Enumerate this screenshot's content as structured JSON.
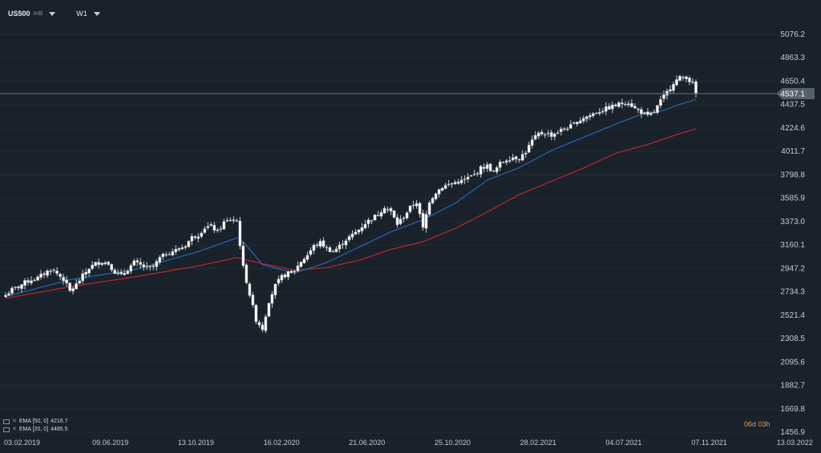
{
  "toolbar": {
    "symbol": "US500",
    "symbol_suffix": "IHB",
    "timeframe": "W1"
  },
  "indicators": [
    {
      "label": "EMA [50, 0]",
      "value": "4216.7",
      "color": "#b1262b"
    },
    {
      "label": "EMA [20, 0]",
      "value": "4485.5",
      "color": "#2563a8"
    }
  ],
  "timer": {
    "days": "06",
    "days_unit": "d",
    "hours": "03",
    "hours_unit": "h"
  },
  "current_price": {
    "value": 4537.1,
    "label": "4537.1",
    "color": "#6b737d"
  },
  "colors": {
    "background": "#19212a",
    "up": "#ffffff",
    "down": "#ffffff",
    "candle_border": "#9aa0a8",
    "grid": "#232c36"
  },
  "chart_data": {
    "type": "candlestick",
    "x_labels": [
      "03.02.2019",
      "09.06.2019",
      "13.10.2019",
      "16.02.2020",
      "21.06.2020",
      "25.10.2020",
      "28.02.2021",
      "04.07.2021",
      "07.11.2021",
      "13.03.2022"
    ],
    "y_ticks": [
      1456.9,
      1669.8,
      1882.7,
      2095.6,
      2308.5,
      2521.4,
      2734.3,
      2947.2,
      3160.1,
      3373.0,
      3585.9,
      3798.8,
      4011.7,
      4224.6,
      4437.5,
      4650.4,
      4863.3,
      5076.2
    ],
    "y_tick_labels": [
      "1456.9",
      "1669.8",
      "1882.7",
      "2095.6",
      "2308.5",
      "2521.4",
      "2734.3",
      "2947.2",
      "3160.1",
      "3373.0",
      "3585.9",
      "3798.8",
      "4011.7",
      "4224.6",
      "4437.5",
      "4650.4",
      "4863.3",
      "5076.2"
    ],
    "ylim": [
      1400,
      5250
    ],
    "close_anchors": [
      [
        0,
        2704
      ],
      [
        2,
        2753
      ],
      [
        4,
        2780
      ],
      [
        6,
        2820
      ],
      [
        8,
        2845
      ],
      [
        10,
        2860
      ],
      [
        12,
        2900
      ],
      [
        14,
        2940
      ],
      [
        16,
        2900
      ],
      [
        18,
        2850
      ],
      [
        20,
        2740
      ],
      [
        22,
        2800
      ],
      [
        24,
        2880
      ],
      [
        26,
        2950
      ],
      [
        28,
        2990
      ],
      [
        30,
        3010
      ],
      [
        32,
        2990
      ],
      [
        34,
        2915
      ],
      [
        36,
        2880
      ],
      [
        38,
        2940
      ],
      [
        40,
        3000
      ],
      [
        42,
        2975
      ],
      [
        44,
        2950
      ],
      [
        46,
        2960
      ],
      [
        48,
        3040
      ],
      [
        50,
        3080
      ],
      [
        52,
        3105
      ],
      [
        54,
        3120
      ],
      [
        56,
        3160
      ],
      [
        58,
        3230
      ],
      [
        60,
        3255
      ],
      [
        62,
        3320
      ],
      [
        64,
        3330
      ],
      [
        66,
        3280
      ],
      [
        68,
        3365
      ],
      [
        70,
        3390
      ],
      [
        72,
        3380
      ],
      [
        74,
        2955
      ],
      [
        76,
        2710
      ],
      [
        78,
        2480
      ],
      [
        80,
        2400
      ],
      [
        82,
        2650
      ],
      [
        84,
        2790
      ],
      [
        86,
        2870
      ],
      [
        88,
        2900
      ],
      [
        90,
        2930
      ],
      [
        92,
        3010
      ],
      [
        94,
        3070
      ],
      [
        96,
        3150
      ],
      [
        98,
        3180
      ],
      [
        100,
        3130
      ],
      [
        102,
        3100
      ],
      [
        104,
        3150
      ],
      [
        106,
        3210
      ],
      [
        108,
        3250
      ],
      [
        110,
        3300
      ],
      [
        112,
        3360
      ],
      [
        114,
        3400
      ],
      [
        116,
        3440
      ],
      [
        118,
        3510
      ],
      [
        120,
        3460
      ],
      [
        122,
        3350
      ],
      [
        124,
        3420
      ],
      [
        126,
        3500
      ],
      [
        128,
        3550
      ],
      [
        130,
        3310
      ],
      [
        132,
        3560
      ],
      [
        134,
        3640
      ],
      [
        136,
        3690
      ],
      [
        138,
        3710
      ],
      [
        140,
        3730
      ],
      [
        142,
        3740
      ],
      [
        144,
        3770
      ],
      [
        146,
        3800
      ],
      [
        148,
        3860
      ],
      [
        150,
        3880
      ],
      [
        152,
        3820
      ],
      [
        154,
        3900
      ],
      [
        156,
        3940
      ],
      [
        158,
        3960
      ],
      [
        160,
        3950
      ],
      [
        162,
        4010
      ],
      [
        164,
        4110
      ],
      [
        166,
        4170
      ],
      [
        168,
        4180
      ],
      [
        170,
        4160
      ],
      [
        172,
        4190
      ],
      [
        174,
        4220
      ],
      [
        176,
        4240
      ],
      [
        178,
        4280
      ],
      [
        180,
        4320
      ],
      [
        182,
        4340
      ],
      [
        184,
        4370
      ],
      [
        186,
        4390
      ],
      [
        188,
        4410
      ],
      [
        190,
        4430
      ],
      [
        192,
        4450
      ],
      [
        194,
        4460
      ],
      [
        196,
        4400
      ],
      [
        198,
        4370
      ],
      [
        200,
        4330
      ],
      [
        202,
        4370
      ],
      [
        204,
        4470
      ],
      [
        206,
        4550
      ],
      [
        208,
        4640
      ],
      [
        210,
        4680
      ],
      [
        212,
        4690
      ],
      [
        214,
        4620
      ],
      [
        215,
        4537
      ]
    ],
    "ema20": [
      [
        0,
        2690
      ],
      [
        20,
        2845
      ],
      [
        40,
        2935
      ],
      [
        60,
        3100
      ],
      [
        72,
        3225
      ],
      [
        74,
        3190
      ],
      [
        80,
        2980
      ],
      [
        90,
        2905
      ],
      [
        100,
        3000
      ],
      [
        110,
        3140
      ],
      [
        120,
        3280
      ],
      [
        130,
        3390
      ],
      [
        140,
        3540
      ],
      [
        150,
        3750
      ],
      [
        160,
        3865
      ],
      [
        170,
        4020
      ],
      [
        180,
        4140
      ],
      [
        190,
        4260
      ],
      [
        198,
        4350
      ],
      [
        205,
        4385
      ],
      [
        210,
        4440
      ],
      [
        215,
        4485
      ]
    ],
    "ema50": [
      [
        0,
        2675
      ],
      [
        20,
        2780
      ],
      [
        40,
        2870
      ],
      [
        60,
        2970
      ],
      [
        72,
        3045
      ],
      [
        80,
        2990
      ],
      [
        90,
        2930
      ],
      [
        100,
        2955
      ],
      [
        110,
        3020
      ],
      [
        120,
        3120
      ],
      [
        130,
        3190
      ],
      [
        140,
        3310
      ],
      [
        150,
        3460
      ],
      [
        160,
        3620
      ],
      [
        170,
        3740
      ],
      [
        180,
        3860
      ],
      [
        190,
        3995
      ],
      [
        200,
        4075
      ],
      [
        205,
        4125
      ],
      [
        210,
        4175
      ],
      [
        215,
        4216.7
      ]
    ],
    "n_candles": 216
  }
}
